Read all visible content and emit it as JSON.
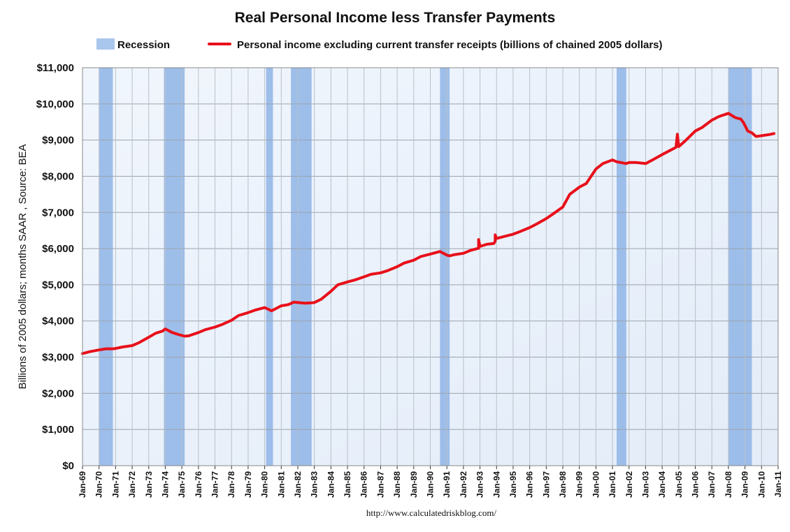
{
  "chart_data": {
    "type": "line",
    "title": "Real Personal Income less Transfer Payments",
    "ylabel": "Billions of 2005 dollars; months SAAR , Source: BEA",
    "source_url": "http://www.calculatedriskblog.com/",
    "ylim": [
      0,
      11000
    ],
    "yticks": [
      0,
      1000,
      2000,
      3000,
      4000,
      5000,
      6000,
      7000,
      8000,
      9000,
      10000,
      11000
    ],
    "ytick_labels": [
      "$0",
      "$1,000",
      "$2,000",
      "$3,000",
      "$4,000",
      "$5,000",
      "$6,000",
      "$7,000",
      "$8,000",
      "$9,000",
      "$10,000",
      "$11,000"
    ],
    "xlim": [
      "1969-01",
      "2011-01"
    ],
    "xtick_labels": [
      "Jan-69",
      "Jan-70",
      "Jan-71",
      "Jan-72",
      "Jan-73",
      "Jan-74",
      "Jan-75",
      "Jan-76",
      "Jan-77",
      "Jan-78",
      "Jan-79",
      "Jan-80",
      "Jan-81",
      "Jan-82",
      "Jan-83",
      "Jan-84",
      "Jan-85",
      "Jan-86",
      "Jan-87",
      "Jan-88",
      "Jan-89",
      "Jan-90",
      "Jan-91",
      "Jan-92",
      "Jan-93",
      "Jan-94",
      "Jan-95",
      "Jan-96",
      "Jan-97",
      "Jan-98",
      "Jan-99",
      "Jan-00",
      "Jan-01",
      "Jan-02",
      "Jan-03",
      "Jan-04",
      "Jan-05",
      "Jan-06",
      "Jan-07",
      "Jan-08",
      "Jan-09",
      "Jan-10",
      "Jan-11"
    ],
    "grid": true,
    "legend": {
      "placement": "top",
      "entries": [
        {
          "label": "Recession",
          "kind": "box",
          "color": "#a9c6ec"
        },
        {
          "label": "Personal income excluding current transfer receipts (billions of chained 2005 dollars)",
          "kind": "line",
          "color": "#e8101a"
        }
      ]
    },
    "recessions": [
      {
        "start": "1970-01",
        "end": "1970-11"
      },
      {
        "start": "1973-12",
        "end": "1975-03"
      },
      {
        "start": "1980-02",
        "end": "1980-07"
      },
      {
        "start": "1981-08",
        "end": "1982-11"
      },
      {
        "start": "1990-08",
        "end": "1991-03"
      },
      {
        "start": "2001-04",
        "end": "2001-11"
      },
      {
        "start": "2008-01",
        "end": "2009-06"
      }
    ],
    "series": [
      {
        "name": "Personal income excluding current transfer receipts (billions of chained 2005 dollars)",
        "color": "#e8101a",
        "x": [
          "1969-01",
          "1969-06",
          "1970-01",
          "1970-06",
          "1970-11",
          "1971-01",
          "1971-06",
          "1972-01",
          "1972-06",
          "1973-01",
          "1973-06",
          "1973-11",
          "1974-01",
          "1974-06",
          "1974-11",
          "1975-03",
          "1975-06",
          "1976-01",
          "1976-06",
          "1977-01",
          "1977-06",
          "1978-01",
          "1978-06",
          "1979-01",
          "1979-06",
          "1980-01",
          "1980-06",
          "1980-09",
          "1981-01",
          "1981-06",
          "1981-10",
          "1982-06",
          "1982-11",
          "1983-01",
          "1983-06",
          "1984-01",
          "1984-06",
          "1985-01",
          "1985-06",
          "1986-01",
          "1986-06",
          "1987-01",
          "1987-06",
          "1988-01",
          "1988-06",
          "1989-01",
          "1989-06",
          "1990-01",
          "1990-08",
          "1991-01",
          "1991-03",
          "1991-06",
          "1992-01",
          "1992-06",
          "1992-12",
          "1993-01",
          "1993-06",
          "1993-11",
          "1993-12",
          "1994-01",
          "1994-06",
          "1995-01",
          "1995-06",
          "1996-01",
          "1996-06",
          "1997-01",
          "1997-06",
          "1998-01",
          "1998-06",
          "1999-01",
          "1999-06",
          "2000-01",
          "2000-06",
          "2001-01",
          "2001-04",
          "2001-11",
          "2002-01",
          "2002-06",
          "2003-01",
          "2003-06",
          "2004-01",
          "2004-06",
          "2004-11",
          "2004-12",
          "2005-01",
          "2005-06",
          "2006-01",
          "2006-06",
          "2007-01",
          "2007-06",
          "2008-01",
          "2008-06",
          "2008-10",
          "2008-12",
          "2009-03",
          "2009-06",
          "2009-09",
          "2010-01",
          "2010-06",
          "2010-10"
        ],
        "y": [
          3100,
          3150,
          3200,
          3230,
          3230,
          3240,
          3280,
          3320,
          3400,
          3550,
          3660,
          3720,
          3780,
          3680,
          3620,
          3580,
          3590,
          3680,
          3760,
          3830,
          3900,
          4020,
          4150,
          4230,
          4300,
          4370,
          4280,
          4340,
          4420,
          4450,
          4520,
          4490,
          4500,
          4510,
          4600,
          4820,
          5000,
          5080,
          5130,
          5220,
          5290,
          5330,
          5390,
          5500,
          5600,
          5680,
          5780,
          5850,
          5920,
          5820,
          5800,
          5830,
          5870,
          5950,
          6010,
          6060,
          6120,
          6140,
          6200,
          6280,
          6330,
          6400,
          6470,
          6580,
          6680,
          6830,
          6960,
          7150,
          7500,
          7700,
          7800,
          8200,
          8350,
          8450,
          8400,
          8350,
          8380,
          8380,
          8350,
          8450,
          8600,
          8700,
          8800,
          9150,
          8820,
          8990,
          9250,
          9350,
          9550,
          9650,
          9740,
          9620,
          9580,
          9480,
          9250,
          9200,
          9100,
          9120,
          9150,
          9180
        ],
        "spikes": [
          {
            "x": "1992-12",
            "y": 6250
          },
          {
            "x": "1993-12",
            "y": 6380
          },
          {
            "x": "2004-12",
            "y": 9160
          }
        ]
      }
    ]
  }
}
